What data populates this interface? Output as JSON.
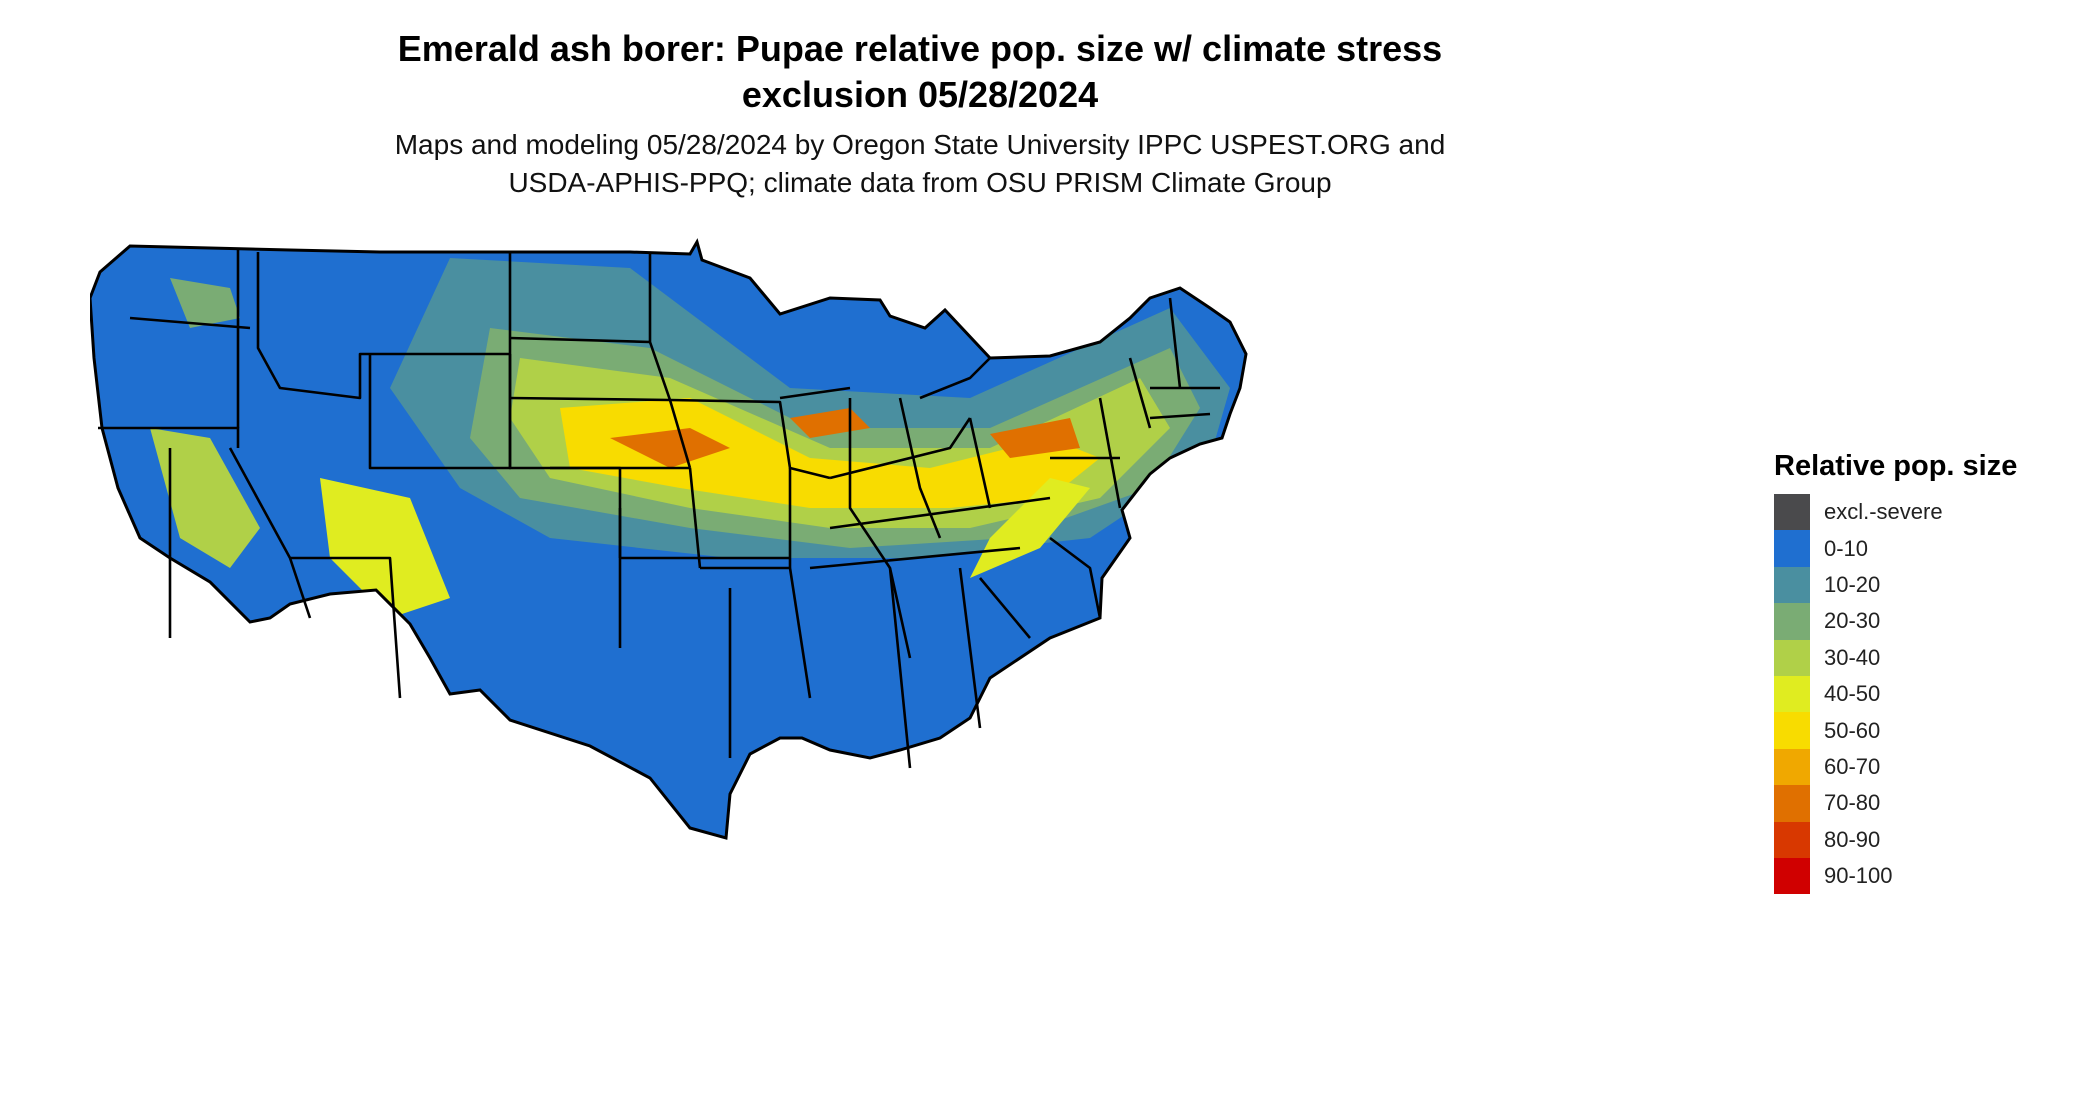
{
  "title_line1": "Emerald ash borer: Pupae relative pop. size w/ climate stress",
  "title_line2": "exclusion 05/28/2024",
  "subtitle_line1": "Maps and modeling 05/28/2024 by Oregon State University IPPC USPEST.ORG and",
  "subtitle_line2": "USDA-APHIS-PPQ; climate data from OSU PRISM Climate Group",
  "legend": {
    "title": "Relative pop. size",
    "items": [
      {
        "label": "excl.-severe",
        "color": "#4a4a4c"
      },
      {
        "label": "0-10",
        "color": "#1f6fd0"
      },
      {
        "label": "10-20",
        "color": "#4a8fa0"
      },
      {
        "label": "20-30",
        "color": "#7aac74"
      },
      {
        "label": "30-40",
        "color": "#b0d048"
      },
      {
        "label": "40-50",
        "color": "#e0ec20"
      },
      {
        "label": "50-60",
        "color": "#f8dc00"
      },
      {
        "label": "60-70",
        "color": "#f0a800"
      },
      {
        "label": "70-80",
        "color": "#e07000"
      },
      {
        "label": "80-90",
        "color": "#d83800"
      },
      {
        "label": "90-100",
        "color": "#d00000"
      }
    ]
  }
}
